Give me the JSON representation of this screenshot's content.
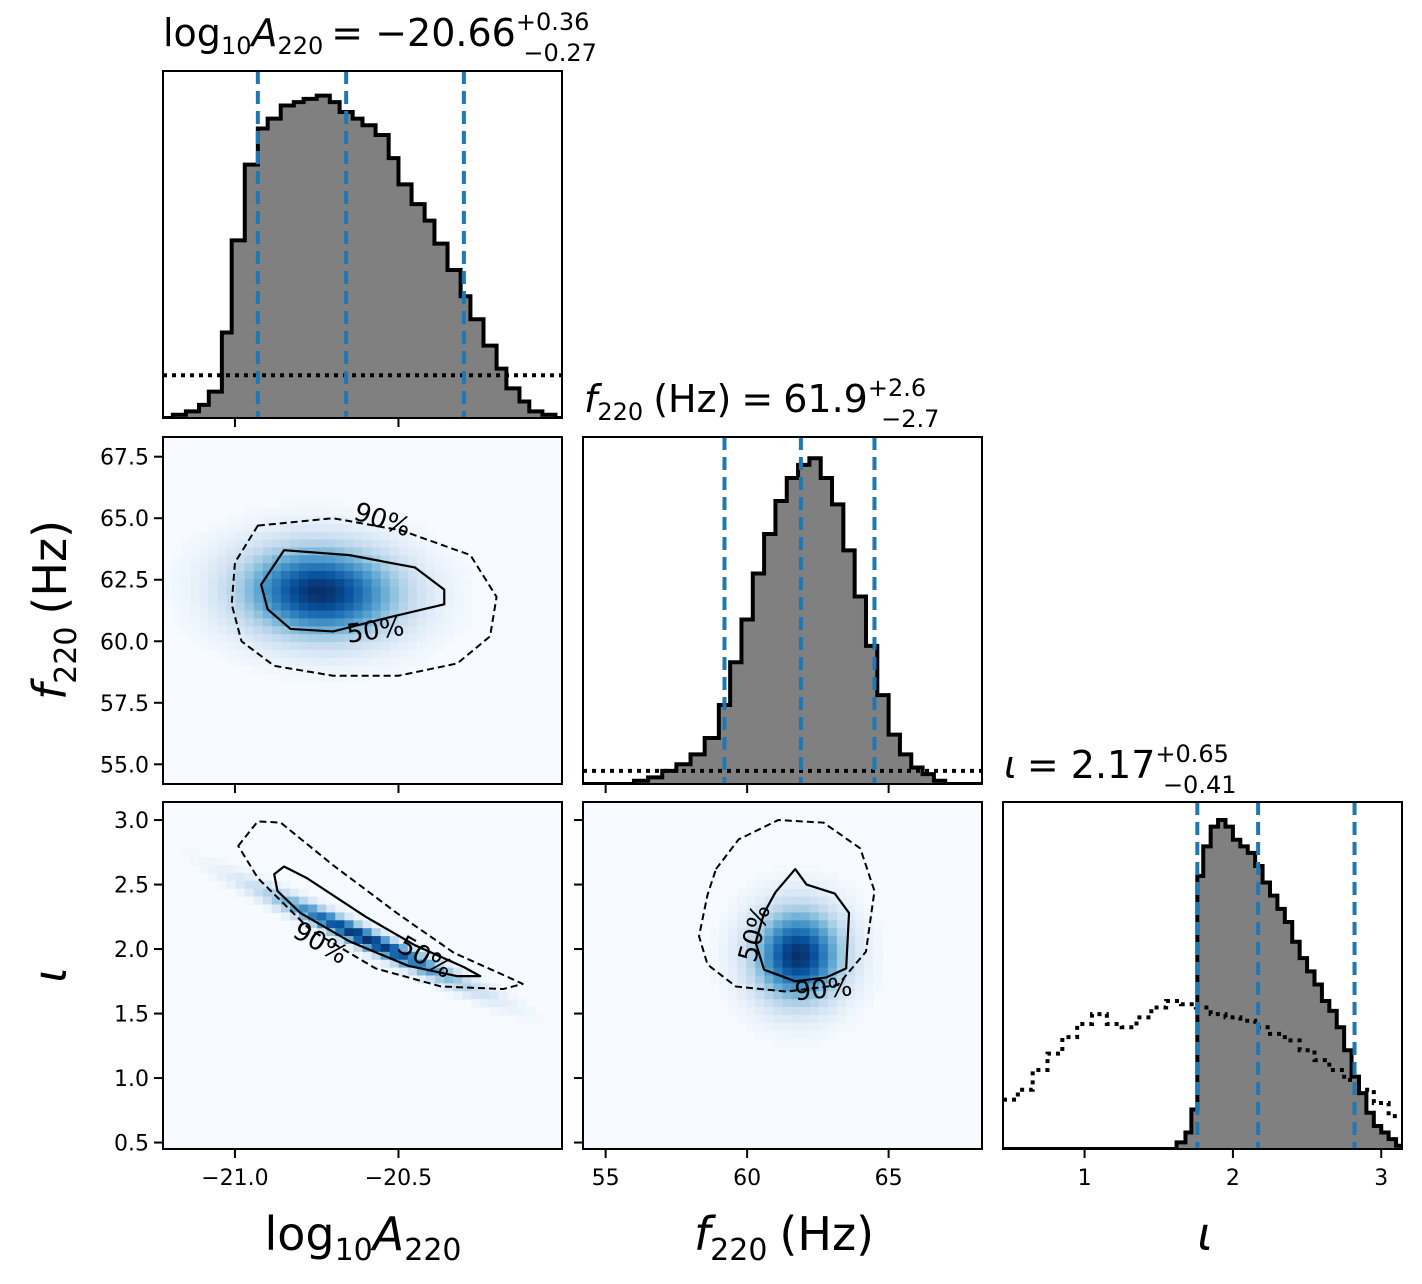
{
  "chart_data": {
    "type": "corner",
    "parameters": [
      {
        "key": "logA",
        "label_base": "log",
        "label_sub1": "10",
        "label_italic": "A",
        "label_sub2": "220",
        "title_value": "= −20.66",
        "err_plus": "+0.36",
        "err_minus": "−0.27",
        "range": [
          -21.22,
          -20.0
        ],
        "ticks": [
          -21.0,
          -20.5
        ],
        "tick_labels": [
          "−21.0",
          "−20.5"
        ],
        "quantiles": [
          -20.93,
          -20.66,
          -20.3
        ]
      },
      {
        "key": "f220",
        "label_italic": "f",
        "label_sub": "220",
        "label_unit": "(Hz)",
        "title_value": "61.9",
        "err_plus": "+2.6",
        "err_minus": "−2.7",
        "range": [
          54.2,
          68.3
        ],
        "ticks_x": [
          55,
          60,
          65
        ],
        "tick_labels_x": [
          "55",
          "60",
          "65"
        ],
        "ticks_y": [
          55.0,
          57.5,
          60.0,
          62.5,
          65.0,
          67.5
        ],
        "tick_labels_y": [
          "55.0",
          "57.5",
          "60.0",
          "62.5",
          "65.0",
          "67.5"
        ],
        "quantiles": [
          59.2,
          61.9,
          64.5
        ]
      },
      {
        "key": "iota",
        "label": "ι",
        "title_value": "= 2.17",
        "err_plus": "+0.65",
        "err_minus": "−0.41",
        "range": [
          0.45,
          3.14
        ],
        "ticks_x": [
          1,
          2,
          3
        ],
        "tick_labels_x": [
          "1",
          "2",
          "3"
        ],
        "ticks_y": [
          0.5,
          1.0,
          1.5,
          2.0,
          2.5,
          3.0
        ],
        "tick_labels_y": [
          "0.5",
          "1.0",
          "1.5",
          "2.0",
          "2.5",
          "3.0"
        ],
        "quantiles": [
          1.76,
          2.17,
          2.82
        ]
      }
    ],
    "marginals": {
      "logA": {
        "posterior_x": [
          -21.22,
          -21.19,
          -21.15,
          -21.11,
          -21.08,
          -21.04,
          -21.01,
          -20.97,
          -20.93,
          -20.9,
          -20.86,
          -20.82,
          -20.79,
          -20.75,
          -20.71,
          -20.68,
          -20.64,
          -20.61,
          -20.57,
          -20.53,
          -20.5,
          -20.46,
          -20.42,
          -20.39,
          -20.35,
          -20.31,
          -20.28,
          -20.24,
          -20.2,
          -20.17,
          -20.13,
          -20.1,
          -20.06,
          -20.02,
          -20.0
        ],
        "posterior_y": [
          0.0,
          0.01,
          0.02,
          0.04,
          0.08,
          0.26,
          0.54,
          0.77,
          0.88,
          0.91,
          0.95,
          0.96,
          0.97,
          0.98,
          0.96,
          0.93,
          0.91,
          0.89,
          0.86,
          0.79,
          0.71,
          0.65,
          0.6,
          0.53,
          0.45,
          0.37,
          0.3,
          0.22,
          0.15,
          0.09,
          0.05,
          0.02,
          0.01,
          0.0,
          0.0
        ],
        "prior_y": 0.13
      },
      "f220": {
        "posterior_x": [
          54.2,
          55.0,
          56.0,
          56.5,
          57.0,
          57.5,
          58.0,
          58.5,
          59.0,
          59.4,
          59.8,
          60.2,
          60.6,
          61.0,
          61.4,
          61.8,
          62.2,
          62.6,
          63.0,
          63.4,
          63.8,
          64.2,
          64.6,
          65.0,
          65.4,
          65.8,
          66.2,
          66.6,
          67.0,
          67.5,
          68.3
        ],
        "posterior_y": [
          0.0,
          0.0,
          0.01,
          0.02,
          0.04,
          0.06,
          0.09,
          0.14,
          0.24,
          0.37,
          0.5,
          0.64,
          0.76,
          0.86,
          0.93,
          0.97,
          0.99,
          0.93,
          0.85,
          0.71,
          0.57,
          0.42,
          0.27,
          0.15,
          0.09,
          0.05,
          0.03,
          0.01,
          0.0,
          0.0,
          0.0
        ],
        "prior_y": 0.04
      },
      "iota": {
        "posterior_x": [
          0.45,
          1.5,
          1.62,
          1.68,
          1.72,
          1.76,
          1.8,
          1.85,
          1.9,
          1.95,
          2.0,
          2.05,
          2.1,
          2.15,
          2.2,
          2.25,
          2.3,
          2.35,
          2.4,
          2.45,
          2.5,
          2.55,
          2.6,
          2.65,
          2.7,
          2.75,
          2.8,
          2.85,
          2.9,
          2.95,
          3.0,
          3.05,
          3.1,
          3.14
        ],
        "posterior_y": [
          0.0,
          0.0,
          0.02,
          0.05,
          0.12,
          0.83,
          0.92,
          0.98,
          1.0,
          0.98,
          0.94,
          0.92,
          0.9,
          0.86,
          0.81,
          0.77,
          0.73,
          0.69,
          0.63,
          0.58,
          0.54,
          0.5,
          0.45,
          0.42,
          0.37,
          0.3,
          0.22,
          0.17,
          0.11,
          0.07,
          0.05,
          0.03,
          0.01,
          0.0
        ],
        "prior_x": [
          0.45,
          0.55,
          0.65,
          0.75,
          0.85,
          0.95,
          1.05,
          1.15,
          1.25,
          1.35,
          1.45,
          1.55,
          1.65,
          1.75,
          1.85,
          1.95,
          2.05,
          2.15,
          2.25,
          2.35,
          2.45,
          2.55,
          2.65,
          2.75,
          2.85,
          2.95,
          3.05,
          3.14
        ],
        "prior_y": [
          0.15,
          0.18,
          0.24,
          0.29,
          0.34,
          0.38,
          0.41,
          0.38,
          0.37,
          0.4,
          0.43,
          0.45,
          0.44,
          0.43,
          0.41,
          0.4,
          0.39,
          0.37,
          0.35,
          0.33,
          0.3,
          0.27,
          0.24,
          0.21,
          0.18,
          0.14,
          0.1,
          0.06
        ]
      }
    },
    "joints": [
      {
        "x": "logA",
        "y": "f220",
        "peak": [
          -20.74,
          62.0
        ],
        "spread": [
          0.17,
          1.3
        ],
        "rho": -0.05,
        "contour_90": [
          [
            -20.93,
            64.7
          ],
          [
            -20.7,
            65.0
          ],
          [
            -20.49,
            64.5
          ],
          [
            -20.28,
            63.5
          ],
          [
            -20.2,
            61.8
          ],
          [
            -20.22,
            60.2
          ],
          [
            -20.32,
            59.1
          ],
          [
            -20.5,
            58.6
          ],
          [
            -20.7,
            58.6
          ],
          [
            -20.88,
            59.0
          ],
          [
            -20.98,
            60.0
          ],
          [
            -21.01,
            61.5
          ],
          [
            -21.0,
            63.2
          ]
        ],
        "contour_50": [
          [
            -20.85,
            63.7
          ],
          [
            -20.65,
            63.5
          ],
          [
            -20.45,
            63.0
          ],
          [
            -20.36,
            62.1
          ],
          [
            -20.36,
            61.5
          ],
          [
            -20.52,
            61.0
          ],
          [
            -20.7,
            60.4
          ],
          [
            -20.83,
            60.5
          ],
          [
            -20.9,
            61.3
          ],
          [
            -20.92,
            62.3
          ]
        ],
        "label_90": {
          "text": "90%",
          "at": [
            -20.55,
            64.9
          ]
        },
        "label_50": {
          "text": "50%",
          "at": [
            -20.57,
            60.4
          ]
        }
      },
      {
        "x": "logA",
        "y": "iota",
        "peak": [
          -20.6,
          2.08
        ],
        "spread": [
          0.2,
          0.24
        ],
        "rho": -0.97,
        "contour_90": [
          [
            -20.99,
            2.8
          ],
          [
            -20.93,
            2.99
          ],
          [
            -20.86,
            2.98
          ],
          [
            -20.7,
            2.65
          ],
          [
            -20.5,
            2.27
          ],
          [
            -20.33,
            1.97
          ],
          [
            -20.18,
            1.8
          ],
          [
            -20.12,
            1.73
          ],
          [
            -20.18,
            1.69
          ],
          [
            -20.37,
            1.71
          ],
          [
            -20.57,
            1.85
          ],
          [
            -20.77,
            2.15
          ],
          [
            -20.93,
            2.55
          ]
        ],
        "contour_50": [
          [
            -20.88,
            2.58
          ],
          [
            -20.85,
            2.64
          ],
          [
            -20.78,
            2.55
          ],
          [
            -20.6,
            2.25
          ],
          [
            -20.45,
            2.03
          ],
          [
            -20.3,
            1.86
          ],
          [
            -20.25,
            1.79
          ],
          [
            -20.32,
            1.79
          ],
          [
            -20.47,
            1.87
          ],
          [
            -20.65,
            2.06
          ],
          [
            -20.8,
            2.28
          ],
          [
            -20.87,
            2.45
          ]
        ],
        "label_90": {
          "text": "90%",
          "at": [
            -20.74,
            2.04
          ]
        },
        "label_50": {
          "text": "50%",
          "at": [
            -20.42,
            1.93
          ]
        }
      },
      {
        "x": "f220",
        "y": "iota",
        "peak": [
          61.8,
          1.95
        ],
        "spread": [
          1.1,
          0.25
        ],
        "rho": 0.0,
        "contour_90": [
          [
            58.9,
            2.62
          ],
          [
            59.7,
            2.85
          ],
          [
            61.1,
            3.0
          ],
          [
            62.7,
            2.98
          ],
          [
            64.0,
            2.78
          ],
          [
            64.5,
            2.45
          ],
          [
            64.2,
            1.98
          ],
          [
            63.2,
            1.72
          ],
          [
            61.4,
            1.67
          ],
          [
            59.6,
            1.71
          ],
          [
            58.6,
            1.88
          ],
          [
            58.3,
            2.1
          ],
          [
            58.6,
            2.42
          ]
        ],
        "contour_50": [
          [
            61.0,
            2.44
          ],
          [
            61.7,
            2.62
          ],
          [
            62.1,
            2.5
          ],
          [
            63.1,
            2.43
          ],
          [
            63.6,
            2.28
          ],
          [
            63.5,
            1.85
          ],
          [
            62.8,
            1.78
          ],
          [
            61.7,
            1.75
          ],
          [
            60.6,
            1.84
          ],
          [
            60.3,
            2.05
          ],
          [
            60.6,
            2.28
          ]
        ],
        "label_90": {
          "text": "90%",
          "at": [
            62.7,
            1.68
          ]
        },
        "label_50": {
          "text": "50%",
          "at": [
            60.3,
            2.12
          ]
        }
      }
    ],
    "x_axis_labels": [
      "log10A220",
      "f220 (Hz)",
      "ι"
    ],
    "y_axis_labels": [
      "f220 (Hz)",
      "ι"
    ]
  }
}
